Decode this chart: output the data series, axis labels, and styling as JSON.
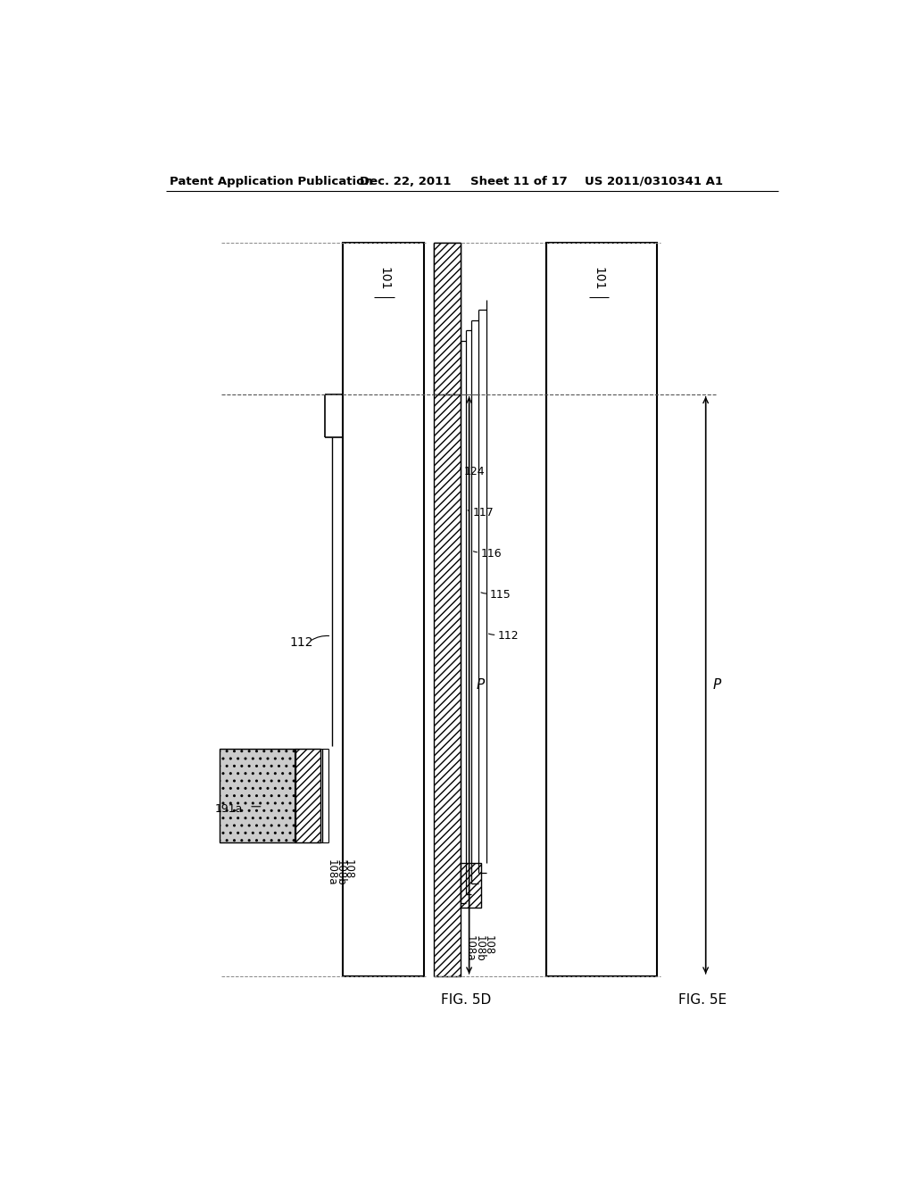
{
  "bg_color": "#ffffff",
  "line_color": "#000000",
  "header_text": "Patent Application Publication",
  "header_date": "Dec. 22, 2011",
  "header_sheet": "Sheet 11 of 17",
  "header_patent": "US 2011/0310341 A1",
  "fig5d_label": "FIG. 5D",
  "fig5e_label": "FIG. 5E",
  "p_label": "P"
}
